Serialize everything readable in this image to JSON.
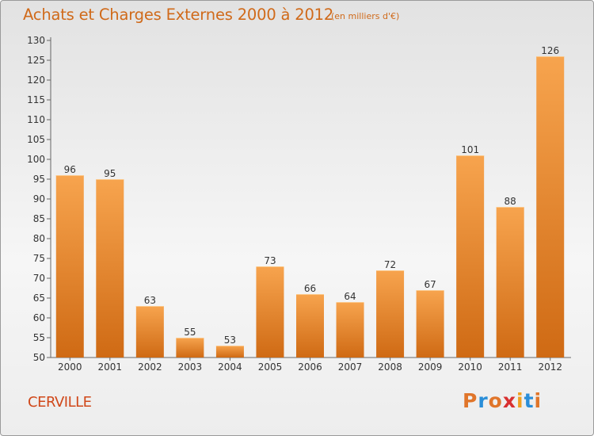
{
  "chart_data": {
    "type": "bar",
    "title": "Achats et Charges Externes 2000 à 2012",
    "subtitle": "(en milliers d'€)",
    "categories": [
      "2000",
      "2001",
      "2002",
      "2003",
      "2004",
      "2005",
      "2006",
      "2007",
      "2008",
      "2009",
      "2010",
      "2011",
      "2012"
    ],
    "values": [
      96,
      95,
      63,
      55,
      53,
      73,
      66,
      64,
      72,
      67,
      101,
      88,
      126
    ],
    "ylim": [
      50,
      130
    ],
    "yticks": [
      50,
      55,
      60,
      65,
      70,
      75,
      80,
      85,
      90,
      95,
      100,
      105,
      110,
      115,
      120,
      125,
      130
    ],
    "grid": false,
    "legend": "none",
    "bar_color_top": "#f7a44e",
    "bar_color_bottom": "#cf6a14"
  },
  "footer": {
    "commune": "CERVILLE",
    "brand": "Proxiti",
    "brand_colors": [
      "#e0752a",
      "#2a8ed8",
      "#e0752a",
      "#d83030",
      "#f0a020",
      "#2a8ed8",
      "#e0752a"
    ]
  }
}
